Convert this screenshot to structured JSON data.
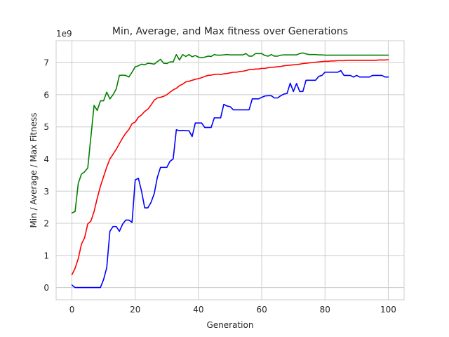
{
  "chart_data": {
    "type": "line",
    "title": "Min, Average, and Max fitness over Generations",
    "xlabel": "Generation",
    "ylabel": "Min / Average / Max Fitness",
    "offset_text": "1e9",
    "xlim": [
      -5,
      105
    ],
    "ylim": [
      -0.38,
      7.68
    ],
    "xticks": [
      0,
      20,
      40,
      60,
      80,
      100
    ],
    "yticks": [
      0,
      1,
      2,
      3,
      4,
      5,
      6,
      7
    ],
    "grid": true,
    "legend": "none",
    "series": [
      {
        "color": "#008000",
        "x": [
          0,
          1,
          2,
          3,
          4,
          5,
          6,
          7,
          8,
          9,
          10,
          11,
          12,
          13,
          14,
          15,
          16,
          17,
          18,
          19,
          20,
          21,
          22,
          23,
          24,
          25,
          26,
          27,
          28,
          29,
          30,
          31,
          32,
          33,
          34,
          35,
          36,
          37,
          38,
          39,
          40,
          41,
          42,
          43,
          44,
          45,
          46,
          47,
          48,
          49,
          50,
          51,
          52,
          53,
          54,
          55,
          56,
          57,
          58,
          59,
          60,
          61,
          62,
          63,
          64,
          65,
          66,
          67,
          68,
          69,
          70,
          71,
          72,
          73,
          74,
          75,
          76,
          77,
          78,
          79,
          80,
          81,
          82,
          83,
          84,
          85,
          86,
          87,
          88,
          89,
          90,
          91,
          92,
          93,
          94,
          95,
          96,
          97,
          98,
          99,
          100
        ],
        "values": [
          2.32,
          2.37,
          3.24,
          3.53,
          3.6,
          3.72,
          4.7,
          5.67,
          5.51,
          5.81,
          5.81,
          6.08,
          5.87,
          6.0,
          6.18,
          6.6,
          6.61,
          6.6,
          6.55,
          6.7,
          6.87,
          6.9,
          6.95,
          6.93,
          6.98,
          6.97,
          6.95,
          7.03,
          7.1,
          6.98,
          6.97,
          7.02,
          7.02,
          7.25,
          7.08,
          7.25,
          7.19,
          7.25,
          7.18,
          7.22,
          7.17,
          7.15,
          7.17,
          7.2,
          7.19,
          7.25,
          7.23,
          7.23,
          7.24,
          7.25,
          7.24,
          7.24,
          7.24,
          7.24,
          7.24,
          7.28,
          7.2,
          7.2,
          7.28,
          7.28,
          7.28,
          7.22,
          7.2,
          7.25,
          7.2,
          7.2,
          7.23,
          7.24,
          7.24,
          7.24,
          7.24,
          7.24,
          7.28,
          7.3,
          7.27,
          7.25,
          7.25,
          7.25,
          7.24,
          7.24,
          7.23,
          7.23,
          7.23,
          7.23,
          7.23,
          7.23,
          7.23,
          7.23,
          7.23,
          7.23,
          7.23,
          7.23,
          7.23,
          7.23,
          7.23,
          7.23,
          7.23,
          7.23,
          7.23,
          7.23,
          7.23
        ]
      },
      {
        "color": "#ff0000",
        "x": [
          0,
          1,
          2,
          3,
          4,
          5,
          6,
          7,
          8,
          9,
          10,
          11,
          12,
          13,
          14,
          15,
          16,
          17,
          18,
          19,
          20,
          21,
          22,
          23,
          24,
          25,
          26,
          27,
          28,
          29,
          30,
          31,
          32,
          33,
          34,
          35,
          36,
          37,
          38,
          39,
          40,
          41,
          42,
          43,
          44,
          45,
          46,
          47,
          48,
          49,
          50,
          51,
          52,
          53,
          54,
          55,
          56,
          57,
          58,
          59,
          60,
          61,
          62,
          63,
          64,
          65,
          66,
          67,
          68,
          69,
          70,
          71,
          72,
          73,
          74,
          75,
          76,
          77,
          78,
          79,
          80,
          81,
          82,
          83,
          84,
          85,
          86,
          87,
          88,
          89,
          90,
          91,
          92,
          93,
          94,
          95,
          96,
          97,
          98,
          99,
          100
        ],
        "values": [
          0.4,
          0.6,
          0.9,
          1.35,
          1.55,
          1.98,
          2.07,
          2.37,
          2.78,
          3.15,
          3.45,
          3.75,
          4.0,
          4.15,
          4.3,
          4.48,
          4.65,
          4.8,
          4.92,
          5.1,
          5.15,
          5.3,
          5.37,
          5.48,
          5.55,
          5.68,
          5.83,
          5.9,
          5.92,
          5.95,
          6.0,
          6.08,
          6.15,
          6.2,
          6.28,
          6.33,
          6.4,
          6.42,
          6.45,
          6.48,
          6.5,
          6.53,
          6.57,
          6.6,
          6.61,
          6.63,
          6.64,
          6.63,
          6.65,
          6.66,
          6.68,
          6.7,
          6.7,
          6.72,
          6.73,
          6.75,
          6.78,
          6.78,
          6.8,
          6.8,
          6.82,
          6.82,
          6.84,
          6.85,
          6.86,
          6.87,
          6.88,
          6.9,
          6.91,
          6.92,
          6.93,
          6.94,
          6.95,
          6.97,
          6.98,
          6.99,
          7.0,
          7.01,
          7.02,
          7.03,
          7.04,
          7.04,
          7.05,
          7.05,
          7.06,
          7.06,
          7.06,
          7.07,
          7.07,
          7.07,
          7.07,
          7.07,
          7.07,
          7.07,
          7.07,
          7.07,
          7.07,
          7.08,
          7.08,
          7.08,
          7.09
        ]
      },
      {
        "color": "#0000ff",
        "x": [
          0,
          1,
          2,
          3,
          4,
          5,
          6,
          7,
          8,
          9,
          10,
          11,
          12,
          13,
          14,
          15,
          16,
          17,
          18,
          19,
          20,
          21,
          22,
          23,
          24,
          25,
          26,
          27,
          28,
          29,
          30,
          31,
          32,
          33,
          34,
          35,
          36,
          37,
          38,
          39,
          40,
          41,
          42,
          43,
          44,
          45,
          46,
          47,
          48,
          49,
          50,
          51,
          52,
          53,
          54,
          55,
          56,
          57,
          58,
          59,
          60,
          61,
          62,
          63,
          64,
          65,
          66,
          67,
          68,
          69,
          70,
          71,
          72,
          73,
          74,
          75,
          76,
          77,
          78,
          79,
          80,
          81,
          82,
          83,
          84,
          85,
          86,
          87,
          88,
          89,
          90,
          91,
          92,
          93,
          94,
          95,
          96,
          97,
          98,
          99,
          100
        ],
        "values": [
          0.08,
          0.0,
          0.0,
          0.0,
          0.0,
          0.0,
          0.0,
          0.0,
          0.0,
          0.0,
          0.25,
          0.62,
          1.75,
          1.9,
          1.9,
          1.75,
          1.97,
          2.1,
          2.1,
          2.03,
          3.35,
          3.4,
          3.0,
          2.48,
          2.48,
          2.65,
          2.92,
          3.43,
          3.74,
          3.74,
          3.74,
          3.93,
          4.0,
          4.91,
          4.88,
          4.89,
          4.88,
          4.88,
          4.7,
          5.12,
          5.12,
          5.12,
          4.98,
          4.98,
          4.98,
          5.28,
          5.28,
          5.28,
          5.7,
          5.65,
          5.63,
          5.53,
          5.53,
          5.53,
          5.53,
          5.53,
          5.53,
          5.87,
          5.87,
          5.87,
          5.92,
          5.96,
          5.97,
          5.97,
          5.9,
          5.9,
          5.97,
          6.02,
          6.04,
          6.36,
          6.1,
          6.35,
          6.1,
          6.1,
          6.45,
          6.45,
          6.45,
          6.45,
          6.57,
          6.6,
          6.7,
          6.7,
          6.7,
          6.7,
          6.7,
          6.75,
          6.6,
          6.6,
          6.6,
          6.55,
          6.6,
          6.55,
          6.55,
          6.55,
          6.55,
          6.6,
          6.6,
          6.6,
          6.6,
          6.55,
          6.55
        ]
      }
    ]
  }
}
